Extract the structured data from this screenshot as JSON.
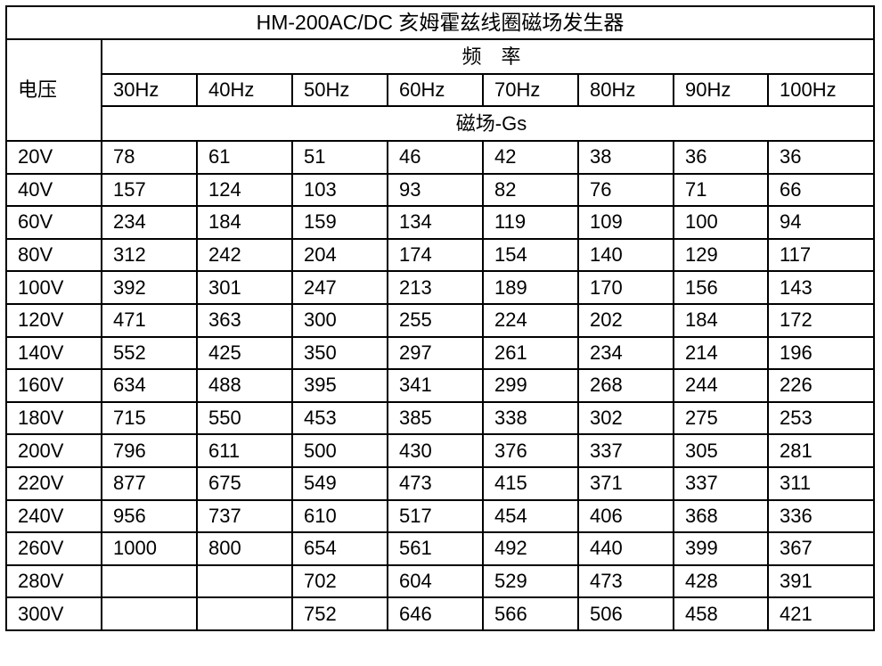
{
  "colors": {
    "background": "#ffffff",
    "border": "#000000",
    "text": "#000000"
  },
  "chart_data": {
    "type": "table",
    "title": "HM-200AC/DC 亥姆霍兹线圈磁场发生器",
    "row_header_label": "电压",
    "column_group_label": "频　率",
    "column_headers": [
      "30Hz",
      "40Hz",
      "50Hz",
      "60Hz",
      "70Hz",
      "80Hz",
      "90Hz",
      "100Hz"
    ],
    "value_unit_label": "磁场-Gs",
    "rows": [
      {
        "voltage": "20V",
        "values": [
          "78",
          "61",
          "51",
          "46",
          "42",
          "38",
          "36",
          "36"
        ]
      },
      {
        "voltage": "40V",
        "values": [
          "157",
          "124",
          "103",
          "93",
          "82",
          "76",
          "71",
          "66"
        ]
      },
      {
        "voltage": "60V",
        "values": [
          "234",
          "184",
          "159",
          "134",
          "119",
          "109",
          "100",
          "94"
        ]
      },
      {
        "voltage": "80V",
        "values": [
          "312",
          "242",
          "204",
          "174",
          "154",
          "140",
          "129",
          "117"
        ]
      },
      {
        "voltage": "100V",
        "values": [
          "392",
          "301",
          "247",
          "213",
          "189",
          "170",
          "156",
          "143"
        ]
      },
      {
        "voltage": "120V",
        "values": [
          "471",
          "363",
          "300",
          "255",
          "224",
          "202",
          "184",
          "172"
        ]
      },
      {
        "voltage": "140V",
        "values": [
          "552",
          "425",
          "350",
          "297",
          "261",
          "234",
          "214",
          "196"
        ]
      },
      {
        "voltage": "160V",
        "values": [
          "634",
          "488",
          "395",
          "341",
          "299",
          "268",
          "244",
          "226"
        ]
      },
      {
        "voltage": "180V",
        "values": [
          "715",
          "550",
          "453",
          "385",
          "338",
          "302",
          "275",
          "253"
        ]
      },
      {
        "voltage": "200V",
        "values": [
          "796",
          "611",
          "500",
          "430",
          "376",
          "337",
          "305",
          "281"
        ]
      },
      {
        "voltage": "220V",
        "values": [
          "877",
          "675",
          "549",
          "473",
          "415",
          "371",
          "337",
          "311"
        ]
      },
      {
        "voltage": "240V",
        "values": [
          "956",
          "737",
          "610",
          "517",
          "454",
          "406",
          "368",
          "336"
        ]
      },
      {
        "voltage": "260V",
        "values": [
          "1000",
          "800",
          "654",
          "561",
          "492",
          "440",
          "399",
          "367"
        ]
      },
      {
        "voltage": "280V",
        "values": [
          "",
          "",
          "702",
          "604",
          "529",
          "473",
          "428",
          "391"
        ]
      },
      {
        "voltage": "300V",
        "values": [
          "",
          "",
          "752",
          "646",
          "566",
          "506",
          "458",
          "421"
        ]
      }
    ]
  }
}
